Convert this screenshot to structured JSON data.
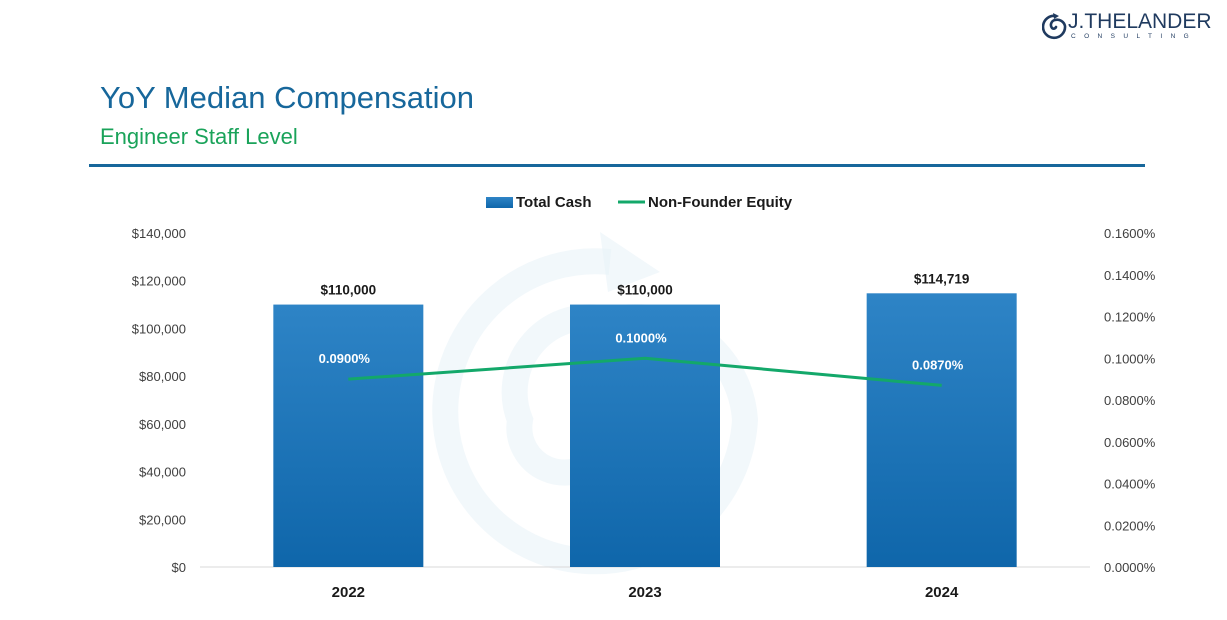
{
  "header": {
    "title": "YoY Median Compensation",
    "subtitle": "Engineer Staff Level"
  },
  "logo": {
    "name": "J.THELANDER",
    "sub": "CONSULTING",
    "icon": "spiral-logo-icon"
  },
  "colors": {
    "title": "#17679b",
    "subtitle": "#1aa35a",
    "bar_top": "#2e84c6",
    "bar_bottom": "#0f66aa",
    "line": "#13a86a",
    "logo": "#1f3a5f"
  },
  "chart_data": {
    "type": "bar",
    "categories": [
      "2022",
      "2023",
      "2024"
    ],
    "series": [
      {
        "name": "Total Cash",
        "type": "bar",
        "axis": "left",
        "values": [
          110000,
          110000,
          114719
        ],
        "labels": [
          "$110,000",
          "$110,000",
          "$114,719"
        ]
      },
      {
        "name": "Non-Founder Equity",
        "type": "line",
        "axis": "right",
        "values": [
          0.09,
          0.1,
          0.087
        ],
        "labels": [
          "0.0900%",
          "0.1000%",
          "0.0870%"
        ]
      }
    ],
    "y_left": {
      "min": 0,
      "max": 140000,
      "ticks": [
        "$0",
        "$20,000",
        "$40,000",
        "$60,000",
        "$80,000",
        "$100,000",
        "$120,000",
        "$140,000"
      ]
    },
    "y_right": {
      "min": 0,
      "max": 0.16,
      "ticks": [
        "0.0000%",
        "0.0200%",
        "0.0400%",
        "0.0600%",
        "0.0800%",
        "0.1000%",
        "0.1200%",
        "0.1400%",
        "0.1600%"
      ]
    },
    "legend": "top-center",
    "grid": false
  }
}
